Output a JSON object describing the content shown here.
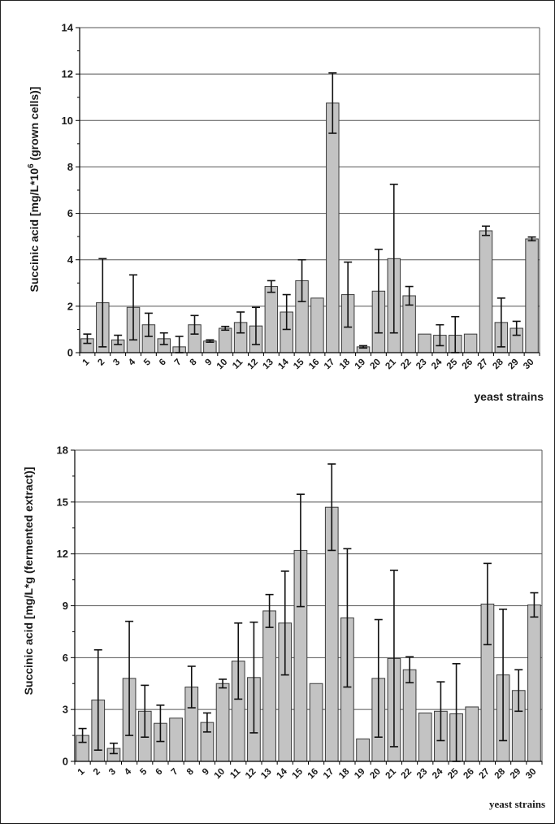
{
  "colors": {
    "bar_fill": "#c3c3c3",
    "bar_stroke": "#3a3a3a",
    "grid": "#555555",
    "axis": "#000000"
  },
  "chart_data": [
    {
      "type": "bar",
      "title": "",
      "ylabel": "Succinic acid [mg/L*10^6 (grown cells)]",
      "ylabel_main": "Succinic acid [mg/L*10",
      "ylabel_sup": "6",
      "ylabel_tail": " (grown cells)]",
      "xlabel": "yeast strains",
      "ylim": [
        0,
        14
      ],
      "yticks": [
        0,
        2,
        4,
        6,
        8,
        10,
        12,
        14
      ],
      "grid": true,
      "categories": [
        "1",
        "2",
        "3",
        "4",
        "5",
        "6",
        "7",
        "8",
        "9",
        "10",
        "11",
        "12",
        "13",
        "14",
        "15",
        "16",
        "17",
        "18",
        "19",
        "20",
        "21",
        "22",
        "23",
        "24",
        "25",
        "26",
        "27",
        "28",
        "29",
        "30"
      ],
      "values": [
        0.6,
        2.15,
        0.55,
        1.95,
        1.2,
        0.6,
        0.25,
        1.2,
        0.5,
        1.05,
        1.3,
        1.15,
        2.85,
        1.75,
        3.1,
        2.35,
        10.75,
        2.5,
        0.25,
        2.65,
        4.05,
        2.45,
        0.8,
        0.75,
        0.75,
        0.8,
        5.25,
        1.3,
        1.05,
        4.9
      ],
      "errors": [
        0.2,
        1.9,
        0.2,
        1.4,
        0.5,
        0.25,
        0.45,
        0.4,
        0.05,
        0.08,
        0.45,
        0.8,
        0.25,
        0.75,
        0.9,
        0.0,
        1.3,
        1.4,
        0.05,
        1.8,
        3.2,
        0.4,
        0.0,
        0.45,
        0.8,
        0.0,
        0.2,
        1.05,
        0.3,
        0.08
      ]
    },
    {
      "type": "bar",
      "title": "",
      "ylabel": "Succinic acid [mg/L*g (fermented extract)]",
      "xlabel": "yeast strains",
      "ylim": [
        0,
        18
      ],
      "yticks": [
        0,
        3,
        6,
        9,
        12,
        15,
        18
      ],
      "grid": true,
      "categories": [
        "1",
        "2",
        "3",
        "4",
        "5",
        "6",
        "7",
        "8",
        "9",
        "10",
        "11",
        "12",
        "13",
        "14",
        "15",
        "16",
        "17",
        "18",
        "19",
        "20",
        "21",
        "22",
        "23",
        "24",
        "25",
        "26",
        "27",
        "28",
        "29",
        "30"
      ],
      "values": [
        1.5,
        3.55,
        0.75,
        4.8,
        2.9,
        2.2,
        2.5,
        4.3,
        2.25,
        4.5,
        5.8,
        4.85,
        8.7,
        8.0,
        12.2,
        4.5,
        14.7,
        8.3,
        1.3,
        4.8,
        5.95,
        5.3,
        2.8,
        2.9,
        2.75,
        3.15,
        9.1,
        5.0,
        4.1,
        9.05
      ],
      "errors": [
        0.4,
        2.9,
        0.3,
        3.3,
        1.5,
        1.05,
        0.0,
        1.2,
        0.55,
        0.25,
        2.2,
        3.2,
        0.95,
        3.0,
        3.25,
        0.0,
        2.5,
        4.0,
        0.0,
        3.4,
        5.1,
        0.75,
        0.0,
        1.7,
        2.9,
        0.0,
        2.35,
        3.8,
        1.2,
        0.7
      ]
    }
  ]
}
